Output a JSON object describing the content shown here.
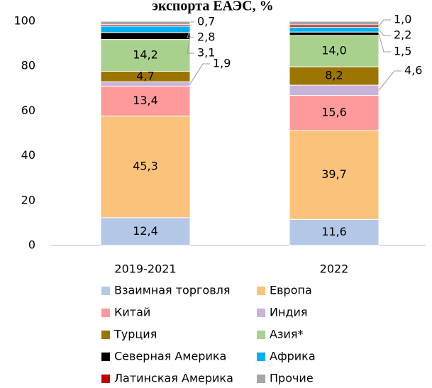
{
  "chart_data": {
    "type": "stacked_bar",
    "title": "экспорта ЕАЭС, %",
    "categories": [
      "2019-2021",
      "2022"
    ],
    "ylim": [
      0,
      100
    ],
    "yticks": [
      0,
      20,
      40,
      60,
      80,
      100
    ],
    "grid": false,
    "series": [
      {
        "name": "Взаимная торговля",
        "color": "#b4c7e7",
        "values": [
          12.4,
          11.6
        ],
        "value_labels": [
          "12,4",
          "11,6"
        ]
      },
      {
        "name": "Европа",
        "color": "#fbc27a",
        "values": [
          45.3,
          39.7
        ],
        "value_labels": [
          "45,3",
          "39,7"
        ]
      },
      {
        "name": "Китай",
        "color": "#ff9a9a",
        "values": [
          13.4,
          15.6
        ],
        "value_labels": [
          "13,4",
          "15,6"
        ]
      },
      {
        "name": "Индия",
        "color": "#c9b3da",
        "values": [
          1.9,
          4.6
        ],
        "value_labels": [
          "1,9",
          "4,6"
        ]
      },
      {
        "name": "Турция",
        "color": "#9c7400",
        "values": [
          4.7,
          8.2
        ],
        "value_labels": [
          "4,7",
          "8,2"
        ]
      },
      {
        "name": "Азия*",
        "color": "#a9d18e",
        "values": [
          14.2,
          14.0
        ],
        "value_labels": [
          "14,2",
          "14,0"
        ]
      },
      {
        "name": "Северная Америка",
        "color": "#000000",
        "values": [
          3.1,
          1.5
        ],
        "value_labels": [
          "3,1",
          "1,5"
        ]
      },
      {
        "name": "Африка",
        "color": "#00b0f0",
        "values": [
          2.8,
          2.2
        ],
        "value_labels": [
          "2,8",
          "2,2"
        ]
      },
      {
        "name": "Латинская Америка",
        "color": "#c00000",
        "values": [
          0.7,
          1.0
        ],
        "value_labels": [
          "0,7",
          "1,0"
        ]
      },
      {
        "name": "Прочие",
        "color": "#a6a6a6",
        "values": [
          1.5,
          1.6
        ]
      }
    ]
  }
}
